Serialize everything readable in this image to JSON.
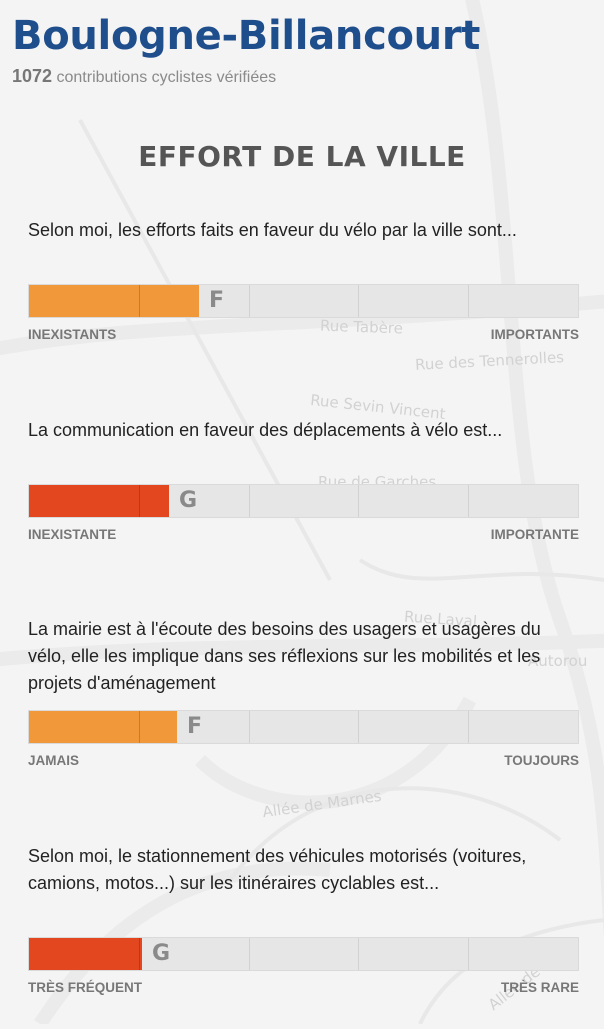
{
  "header": {
    "city": "Boulogne-Billancourt",
    "count": "1072",
    "count_label": "contributions cyclistes vérifiées"
  },
  "section": {
    "title": "EFFORT DE LA VILLE"
  },
  "map_labels": [
    "Rue Tabère",
    "Rue des Tennerolles",
    "Rue Sevin Vincent",
    "Rue de Garches",
    "Rue Laval",
    "Autorou",
    "Allée de Marnes",
    "Allée de Ville"
  ],
  "questions": [
    {
      "text": "Selon moi, les efforts faits en faveur du vélo par la ville sont...",
      "grade": "F",
      "level": 0.31,
      "color": "#f0983a",
      "low": "INEXISTANTS",
      "high": "IMPORTANTS"
    },
    {
      "text": "La communication en faveur des déplacements à vélo est...",
      "grade": "G",
      "level": 0.255,
      "color": "#e2471f",
      "low": "INEXISTANTE",
      "high": "IMPORTANTE"
    },
    {
      "text": "La mairie est à l'écoute des besoins des usagers et usagères du vélo, elle les implique dans ses réflexions sur les mobilités et les projets d'aménagement",
      "grade": "F",
      "level": 0.27,
      "color": "#f0983a",
      "low": "JAMAIS",
      "high": "TOUJOURS"
    },
    {
      "text": "Selon moi, le stationnement des véhicules motorisés (voitures, camions, motos...) sur les itinéraires cyclables est...",
      "grade": "G",
      "level": 0.205,
      "color": "#e2471f",
      "low": "TRÈS FRÉQUENT",
      "high": "TRÈS RARE"
    }
  ]
}
